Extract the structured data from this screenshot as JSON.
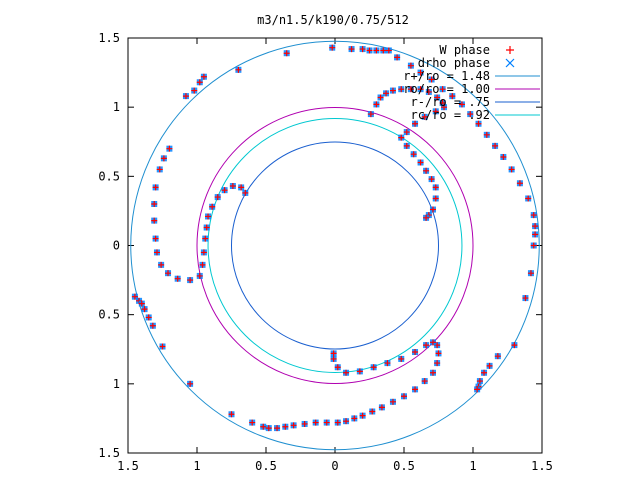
{
  "chart_data": {
    "type": "scatter",
    "title": "m3/n1.5/k190/0.75/512",
    "xlabel": "",
    "ylabel": "",
    "xlim": [
      -1.5,
      1.5
    ],
    "ylim": [
      -1.5,
      1.5
    ],
    "x_tick_values": [
      -1.5,
      -1,
      -0.5,
      0,
      0.5,
      1,
      1.5
    ],
    "x_tick_labels": [
      "1.5",
      "1",
      "0.5",
      "0",
      "0.5",
      "1",
      "1.5"
    ],
    "y_tick_values": [
      1.5,
      1,
      0.5,
      0,
      -0.5,
      -1,
      -1.5
    ],
    "y_tick_labels": [
      "1.5",
      "1",
      "0.5",
      "0",
      "0.5",
      "1",
      "1.5"
    ],
    "grid": false,
    "legend_position": "top-right",
    "series": [
      {
        "name": "W phase",
        "kind": "points",
        "marker": "plus",
        "color": "#ff0000"
      },
      {
        "name": "drho phase",
        "kind": "points",
        "marker": "cross",
        "color": "#0080ff"
      },
      {
        "name": "r+/ro = 1.48",
        "kind": "circle",
        "radius": 1.48,
        "color": "#1f8fd0"
      },
      {
        "name": "ro/ro = 1.00",
        "kind": "circle",
        "radius": 1.0,
        "color": "#b000b0"
      },
      {
        "name": "r-/ro = .75",
        "kind": "circle",
        "radius": 0.75,
        "color": "#1a5fcf"
      },
      {
        "name": "rc/ro = .92",
        "kind": "circle",
        "radius": 0.92,
        "color": "#00c8d0"
      }
    ],
    "point_arms": [
      {
        "arm": "A",
        "points": [
          [
            -1.45,
            -0.37
          ],
          [
            -1.42,
            -0.4
          ],
          [
            -1.4,
            -0.42
          ],
          [
            -1.38,
            -0.46
          ],
          [
            -1.35,
            -0.52
          ],
          [
            -1.32,
            -0.58
          ],
          [
            -1.25,
            -0.73
          ],
          [
            -1.05,
            -1.0
          ],
          [
            -0.75,
            -1.22
          ],
          [
            -0.6,
            -1.28
          ],
          [
            -0.52,
            -1.31
          ],
          [
            -0.48,
            -1.32
          ],
          [
            -0.42,
            -1.32
          ],
          [
            -0.36,
            -1.31
          ],
          [
            -0.3,
            -1.3
          ],
          [
            -0.22,
            -1.29
          ],
          [
            -0.14,
            -1.28
          ],
          [
            -0.06,
            -1.28
          ],
          [
            0.02,
            -1.28
          ],
          [
            0.08,
            -1.27
          ],
          [
            0.14,
            -1.25
          ],
          [
            0.2,
            -1.23
          ],
          [
            0.27,
            -1.2
          ],
          [
            0.34,
            -1.17
          ],
          [
            0.42,
            -1.13
          ],
          [
            0.5,
            -1.09
          ],
          [
            0.58,
            -1.04
          ],
          [
            0.65,
            -0.98
          ],
          [
            0.71,
            -0.92
          ],
          [
            0.74,
            -0.85
          ],
          [
            0.75,
            -0.78
          ],
          [
            0.74,
            -0.72
          ],
          [
            0.71,
            -0.7
          ],
          [
            0.66,
            -0.72
          ],
          [
            0.58,
            -0.77
          ],
          [
            0.48,
            -0.82
          ],
          [
            0.38,
            -0.85
          ],
          [
            0.28,
            -0.88
          ],
          [
            0.18,
            -0.91
          ],
          [
            0.08,
            -0.92
          ],
          [
            0.02,
            -0.88
          ],
          [
            -0.01,
            -0.82
          ],
          [
            -0.01,
            -0.78
          ]
        ]
      },
      {
        "arm": "B",
        "points": [
          [
            -1.08,
            1.08
          ],
          [
            -1.02,
            1.12
          ],
          [
            -0.98,
            1.18
          ],
          [
            -0.95,
            1.22
          ],
          [
            -0.7,
            1.27
          ],
          [
            -0.35,
            1.39
          ],
          [
            -0.02,
            1.43
          ],
          [
            0.12,
            1.42
          ],
          [
            0.2,
            1.42
          ],
          [
            0.25,
            1.41
          ],
          [
            0.3,
            1.41
          ],
          [
            0.35,
            1.41
          ],
          [
            0.39,
            1.41
          ],
          [
            0.45,
            1.36
          ],
          [
            0.55,
            1.3
          ],
          [
            0.62,
            1.25
          ],
          [
            0.7,
            1.2
          ],
          [
            0.78,
            1.13
          ],
          [
            0.85,
            1.08
          ],
          [
            0.92,
            1.02
          ],
          [
            0.98,
            0.95
          ],
          [
            1.04,
            0.88
          ],
          [
            1.1,
            0.8
          ],
          [
            1.16,
            0.72
          ],
          [
            1.22,
            0.64
          ],
          [
            1.28,
            0.55
          ],
          [
            1.34,
            0.45
          ],
          [
            1.4,
            0.34
          ],
          [
            1.44,
            0.22
          ],
          [
            1.45,
            0.14
          ],
          [
            1.45,
            0.08
          ],
          [
            1.44,
            0.0
          ],
          [
            1.42,
            -0.2
          ],
          [
            1.38,
            -0.38
          ],
          [
            1.3,
            -0.72
          ],
          [
            1.18,
            -0.8
          ],
          [
            1.12,
            -0.87
          ],
          [
            1.08,
            -0.92
          ],
          [
            1.05,
            -0.98
          ],
          [
            1.04,
            -1.02
          ],
          [
            1.03,
            -1.04
          ]
        ]
      },
      {
        "arm": "C",
        "points": [
          [
            -1.2,
            0.7
          ],
          [
            -1.24,
            0.63
          ],
          [
            -1.27,
            0.55
          ],
          [
            -1.3,
            0.42
          ],
          [
            -1.31,
            0.3
          ],
          [
            -1.31,
            0.18
          ],
          [
            -1.3,
            0.05
          ],
          [
            -1.29,
            -0.05
          ],
          [
            -1.26,
            -0.14
          ],
          [
            -1.21,
            -0.2
          ],
          [
            -1.14,
            -0.24
          ],
          [
            -1.05,
            -0.25
          ],
          [
            -0.98,
            -0.22
          ],
          [
            -0.96,
            -0.14
          ],
          [
            -0.95,
            -0.05
          ],
          [
            -0.94,
            0.05
          ],
          [
            -0.93,
            0.13
          ],
          [
            -0.92,
            0.21
          ],
          [
            -0.89,
            0.28
          ],
          [
            -0.85,
            0.35
          ],
          [
            -0.8,
            0.4
          ],
          [
            -0.74,
            0.43
          ],
          [
            -0.68,
            0.42
          ],
          [
            -0.65,
            0.38
          ]
        ]
      },
      {
        "arm": "D",
        "points": [
          [
            0.26,
            0.95
          ],
          [
            0.3,
            1.02
          ],
          [
            0.33,
            1.07
          ],
          [
            0.37,
            1.1
          ],
          [
            0.42,
            1.12
          ],
          [
            0.48,
            1.13
          ],
          [
            0.55,
            1.13
          ],
          [
            0.62,
            1.13
          ],
          [
            0.68,
            1.11
          ],
          [
            0.74,
            1.07
          ],
          [
            0.78,
            1.03
          ],
          [
            0.79,
            1.0
          ],
          [
            0.73,
            0.97
          ],
          [
            0.65,
            0.93
          ],
          [
            0.58,
            0.88
          ],
          [
            0.52,
            0.82
          ],
          [
            0.48,
            0.78
          ],
          [
            0.52,
            0.72
          ],
          [
            0.57,
            0.66
          ],
          [
            0.62,
            0.6
          ],
          [
            0.66,
            0.54
          ],
          [
            0.7,
            0.48
          ],
          [
            0.73,
            0.42
          ],
          [
            0.73,
            0.34
          ],
          [
            0.71,
            0.26
          ],
          [
            0.68,
            0.22
          ],
          [
            0.66,
            0.2
          ]
        ]
      }
    ]
  }
}
